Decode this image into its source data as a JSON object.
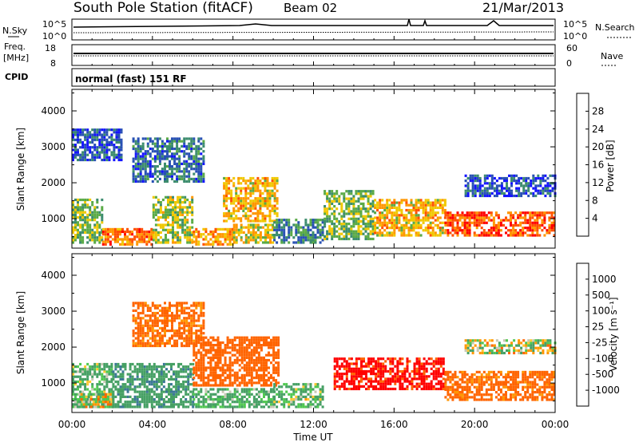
{
  "header": {
    "station": "South Pole Station (fitACF)",
    "beam": "Beam 02",
    "date": "21/Mar/2013"
  },
  "top_panel": {
    "left_label": "N.Sky",
    "right_label": "N.Search",
    "left_ticks": [
      "10^5",
      "10^0"
    ],
    "right_ticks": [
      "10^5",
      "10^0"
    ]
  },
  "freq_panel": {
    "left_label_1": "Freq.",
    "left_label_2": "[MHz]",
    "right_label": "Nave",
    "left_ticks": [
      "18",
      "8"
    ],
    "right_ticks": [
      "60",
      "0"
    ]
  },
  "cpid": {
    "label": "CPID",
    "value": "normal (fast) 151 RF"
  },
  "power_panel": {
    "ylabel": "Slant Range [km]",
    "colorbar_label": "Power [dB]"
  },
  "velocity_panel": {
    "ylabel": "Slant Range [km]",
    "colorbar_label": "Velocity [m s⁻¹]"
  },
  "xaxis_label": "Time UT",
  "colors": {
    "power": [
      "#1414ff",
      "#2850b4",
      "#3c8c6e",
      "#5aaa46",
      "#f0c800",
      "#ff9600",
      "#ff5000",
      "#ff0000"
    ],
    "velocity": [
      "#ff0000",
      "#ff6400",
      "#ff9600",
      "#ffc832",
      "#c8c8b4",
      "#50c850",
      "#46a064",
      "#3c7896",
      "#1e50a0"
    ]
  },
  "chart_data": [
    {
      "type": "heatmap",
      "title": "Power",
      "xlabel": "Time UT",
      "ylabel": "Slant Range [km]",
      "colorbar_label": "Power [dB]",
      "xlim": [
        0,
        24
      ],
      "ylim": [
        180,
        4600
      ],
      "x_ticks": [
        "00:00",
        "04:00",
        "08:00",
        "12:00",
        "16:00",
        "20:00",
        "00:00"
      ],
      "y_ticks": [
        1000,
        2000,
        3000,
        4000
      ],
      "colorbar_ticks": [
        4,
        8,
        12,
        16,
        20,
        24,
        28
      ],
      "colorbar_range": [
        0,
        32
      ],
      "echo_regions": [
        {
          "t_start": 0.0,
          "t_end": 1.5,
          "r_min": 300,
          "r_max": 1500,
          "value": 14
        },
        {
          "t_start": 1.5,
          "t_end": 4.0,
          "r_min": 250,
          "r_max": 700,
          "value": 24
        },
        {
          "t_start": 4.0,
          "t_end": 6.0,
          "r_min": 300,
          "r_max": 1600,
          "value": 16
        },
        {
          "t_start": 6.0,
          "t_end": 8.0,
          "r_min": 250,
          "r_max": 700,
          "value": 22
        },
        {
          "t_start": 7.5,
          "t_end": 10.2,
          "r_min": 900,
          "r_max": 2100,
          "value": 20
        },
        {
          "t_start": 8.0,
          "t_end": 10.0,
          "r_min": 300,
          "r_max": 800,
          "value": 18
        },
        {
          "t_start": 0.0,
          "t_end": 2.5,
          "r_min": 2600,
          "r_max": 3500,
          "value": 6
        },
        {
          "t_start": 3.0,
          "t_end": 6.5,
          "r_min": 2000,
          "r_max": 3200,
          "value": 8
        },
        {
          "t_start": 10.0,
          "t_end": 12.5,
          "r_min": 300,
          "r_max": 1000,
          "value": 10
        },
        {
          "t_start": 12.5,
          "t_end": 15.0,
          "r_min": 400,
          "r_max": 1800,
          "value": 14
        },
        {
          "t_start": 15.0,
          "t_end": 18.5,
          "r_min": 500,
          "r_max": 1500,
          "value": 20
        },
        {
          "t_start": 18.5,
          "t_end": 24.0,
          "r_min": 500,
          "r_max": 1200,
          "value": 26
        },
        {
          "t_start": 19.5,
          "t_end": 24.0,
          "r_min": 1600,
          "r_max": 2200,
          "value": 6
        }
      ]
    },
    {
      "type": "heatmap",
      "title": "Velocity",
      "xlabel": "Time UT",
      "ylabel": "Slant Range [km]",
      "colorbar_label": "Velocity [m s⁻¹]",
      "xlim": [
        0,
        24
      ],
      "ylim": [
        180,
        4600
      ],
      "x_ticks": [
        "00:00",
        "04:00",
        "08:00",
        "12:00",
        "16:00",
        "20:00",
        "00:00"
      ],
      "y_ticks": [
        1000,
        2000,
        3000,
        4000
      ],
      "colorbar_ticks": [
        1000,
        500,
        100,
        25,
        -25,
        -100,
        -500,
        -1000
      ],
      "echo_regions": [
        {
          "t_start": 0.0,
          "t_end": 2.0,
          "r_min": 300,
          "r_max": 1500,
          "value": 120
        },
        {
          "t_start": 0.3,
          "t_end": 2.0,
          "r_min": 300,
          "r_max": 700,
          "value": 0
        },
        {
          "t_start": 2.0,
          "t_end": 6.0,
          "r_min": 300,
          "r_max": 1500,
          "value": 400
        },
        {
          "t_start": 3.0,
          "t_end": 6.5,
          "r_min": 2000,
          "r_max": 3200,
          "value": -200
        },
        {
          "t_start": 6.0,
          "t_end": 10.2,
          "r_min": 900,
          "r_max": 2300,
          "value": -300
        },
        {
          "t_start": 6.0,
          "t_end": 10.0,
          "r_min": 300,
          "r_max": 800,
          "value": 150
        },
        {
          "t_start": 10.0,
          "t_end": 12.5,
          "r_min": 300,
          "r_max": 1000,
          "value": 120
        },
        {
          "t_start": 13.0,
          "t_end": 18.5,
          "r_min": 800,
          "r_max": 1700,
          "value": -600
        },
        {
          "t_start": 18.5,
          "t_end": 24.0,
          "r_min": 500,
          "r_max": 1300,
          "value": -200
        },
        {
          "t_start": 19.5,
          "t_end": 24.0,
          "r_min": 1800,
          "r_max": 2200,
          "value": 30
        }
      ]
    }
  ]
}
